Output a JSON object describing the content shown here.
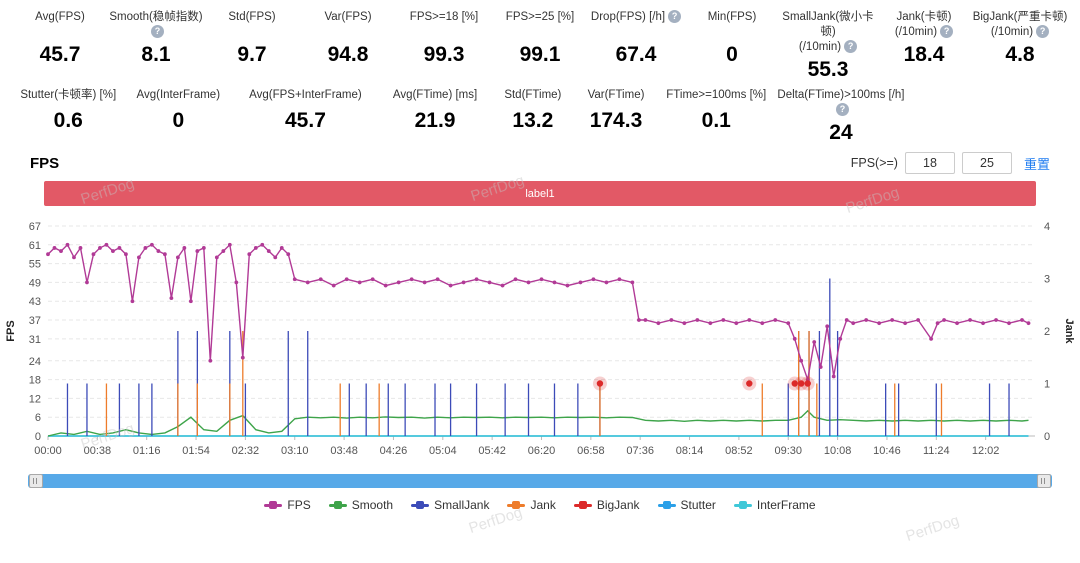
{
  "watermark": "PerfDog",
  "stats_row1": [
    {
      "line1": "Avg(FPS)",
      "value": "45.7",
      "help": false
    },
    {
      "line1": "Smooth(稳帧指数)",
      "value": "8.1",
      "help": true
    },
    {
      "line1": "Std(FPS)",
      "value": "9.7",
      "help": false
    },
    {
      "line1": "Var(FPS)",
      "value": "94.8",
      "help": false
    },
    {
      "line1": "FPS>=18 [%]",
      "value": "99.3",
      "help": false
    },
    {
      "line1": "FPS>=25 [%]",
      "value": "99.1",
      "help": false
    },
    {
      "line1": "Drop(FPS) [/h]",
      "value": "67.4",
      "help": true
    },
    {
      "line1": "Min(FPS)",
      "value": "0",
      "help": false
    },
    {
      "line1": "SmallJank(微小卡顿)",
      "line2": "(/10min)",
      "value": "55.3",
      "help": true
    },
    {
      "line1": "Jank(卡顿)",
      "line2": "(/10min)",
      "value": "18.4",
      "help": true
    },
    {
      "line1": "BigJank(严重卡顿)",
      "line2": "(/10min)",
      "value": "4.8",
      "help": true
    }
  ],
  "stats_row2": [
    {
      "line1": "Stutter(卡顿率) [%]",
      "value": "0.6",
      "help": false
    },
    {
      "line1": "Avg(InterFrame)",
      "value": "0",
      "help": false
    },
    {
      "line1": "Avg(FPS+InterFrame)",
      "value": "45.7",
      "help": false
    },
    {
      "line1": "Avg(FTime) [ms]",
      "value": "21.9",
      "help": false
    },
    {
      "line1": "Std(FTime)",
      "value": "13.2",
      "help": false
    },
    {
      "line1": "Var(FTime)",
      "value": "174.3",
      "help": false
    },
    {
      "line1": "FTime>=100ms [%]",
      "value": "0.1",
      "help": false
    },
    {
      "line1": "Delta(FTime)>100ms [/h]",
      "value": "24",
      "help": true
    }
  ],
  "section": {
    "title": "FPS",
    "filter_label": "FPS(>=)",
    "input1": "18",
    "input2": "25",
    "reset": "重置"
  },
  "banner": {
    "label": "label1",
    "color": "#e25966"
  },
  "chart_data": {
    "type": "line",
    "title": "FPS",
    "y_left": {
      "label": "FPS",
      "max": 67,
      "ticks": [
        0,
        6,
        12,
        18,
        24,
        31,
        37,
        43,
        49,
        55,
        61,
        67
      ]
    },
    "y_right": {
      "label": "Jank",
      "max": 4,
      "ticks": [
        0,
        1,
        2,
        3,
        4
      ]
    },
    "x_ticks": [
      "00:00",
      "00:38",
      "01:16",
      "01:54",
      "02:32",
      "03:10",
      "03:48",
      "04:26",
      "05:04",
      "05:42",
      "06:20",
      "06:58",
      "07:36",
      "08:14",
      "08:52",
      "09:30",
      "10:08",
      "10:46",
      "11:24",
      "12:02"
    ],
    "x_tick_interval_seconds": 38,
    "x_max_seconds": 760,
    "grid": true,
    "legend_position": "bottom",
    "series": [
      {
        "name": "FPS",
        "color": "#b13a96",
        "axis": "left",
        "type": "line+dots",
        "z": 5,
        "points": [
          [
            0,
            58
          ],
          [
            5,
            60
          ],
          [
            10,
            59
          ],
          [
            15,
            61
          ],
          [
            20,
            57
          ],
          [
            25,
            60
          ],
          [
            30,
            49
          ],
          [
            35,
            58
          ],
          [
            40,
            60
          ],
          [
            45,
            61
          ],
          [
            50,
            59
          ],
          [
            55,
            60
          ],
          [
            60,
            58
          ],
          [
            65,
            43
          ],
          [
            70,
            57
          ],
          [
            75,
            60
          ],
          [
            80,
            61
          ],
          [
            85,
            59
          ],
          [
            90,
            58
          ],
          [
            95,
            44
          ],
          [
            100,
            57
          ],
          [
            105,
            60
          ],
          [
            110,
            43
          ],
          [
            115,
            59
          ],
          [
            120,
            60
          ],
          [
            125,
            24
          ],
          [
            130,
            57
          ],
          [
            135,
            59
          ],
          [
            140,
            61
          ],
          [
            145,
            49
          ],
          [
            150,
            25
          ],
          [
            155,
            58
          ],
          [
            160,
            60
          ],
          [
            165,
            61
          ],
          [
            170,
            59
          ],
          [
            175,
            57
          ],
          [
            180,
            60
          ],
          [
            185,
            58
          ],
          [
            190,
            50
          ],
          [
            200,
            49
          ],
          [
            210,
            50
          ],
          [
            220,
            48
          ],
          [
            230,
            50
          ],
          [
            240,
            49
          ],
          [
            250,
            50
          ],
          [
            260,
            48
          ],
          [
            270,
            49
          ],
          [
            280,
            50
          ],
          [
            290,
            49
          ],
          [
            300,
            50
          ],
          [
            310,
            48
          ],
          [
            320,
            49
          ],
          [
            330,
            50
          ],
          [
            340,
            49
          ],
          [
            350,
            48
          ],
          [
            360,
            50
          ],
          [
            370,
            49
          ],
          [
            380,
            50
          ],
          [
            390,
            49
          ],
          [
            400,
            48
          ],
          [
            410,
            49
          ],
          [
            420,
            50
          ],
          [
            430,
            49
          ],
          [
            440,
            50
          ],
          [
            450,
            49
          ],
          [
            455,
            37
          ],
          [
            460,
            37
          ],
          [
            470,
            36
          ],
          [
            480,
            37
          ],
          [
            490,
            36
          ],
          [
            500,
            37
          ],
          [
            510,
            36
          ],
          [
            520,
            37
          ],
          [
            530,
            36
          ],
          [
            540,
            37
          ],
          [
            550,
            36
          ],
          [
            560,
            37
          ],
          [
            570,
            36
          ],
          [
            575,
            31
          ],
          [
            580,
            24
          ],
          [
            585,
            18
          ],
          [
            590,
            30
          ],
          [
            595,
            22
          ],
          [
            600,
            35
          ],
          [
            605,
            19
          ],
          [
            610,
            31
          ],
          [
            615,
            37
          ],
          [
            620,
            36
          ],
          [
            630,
            37
          ],
          [
            640,
            36
          ],
          [
            650,
            37
          ],
          [
            660,
            36
          ],
          [
            670,
            37
          ],
          [
            680,
            31
          ],
          [
            685,
            36
          ],
          [
            690,
            37
          ],
          [
            700,
            36
          ],
          [
            710,
            37
          ],
          [
            720,
            36
          ],
          [
            730,
            37
          ],
          [
            740,
            36
          ],
          [
            750,
            37
          ],
          [
            755,
            36
          ]
        ]
      },
      {
        "name": "Smooth",
        "color": "#3ea44a",
        "axis": "left",
        "type": "line",
        "z": 2,
        "points": [
          [
            0,
            0
          ],
          [
            10,
            1
          ],
          [
            20,
            0.5
          ],
          [
            30,
            1.5
          ],
          [
            40,
            0.5
          ],
          [
            50,
            1
          ],
          [
            60,
            2
          ],
          [
            70,
            1
          ],
          [
            80,
            0.5
          ],
          [
            90,
            1
          ],
          [
            100,
            3
          ],
          [
            110,
            6
          ],
          [
            115,
            4
          ],
          [
            120,
            2
          ],
          [
            130,
            1.5
          ],
          [
            140,
            5
          ],
          [
            150,
            6.5
          ],
          [
            160,
            2
          ],
          [
            170,
            1
          ],
          [
            180,
            1.5
          ],
          [
            190,
            5.5
          ],
          [
            200,
            6
          ],
          [
            210,
            5.8
          ],
          [
            220,
            6
          ],
          [
            230,
            5.7
          ],
          [
            240,
            6
          ],
          [
            250,
            5.8
          ],
          [
            260,
            6.1
          ],
          [
            270,
            5.9
          ],
          [
            280,
            6
          ],
          [
            290,
            5.7
          ],
          [
            300,
            6
          ],
          [
            310,
            5.8
          ],
          [
            320,
            6
          ],
          [
            330,
            5.9
          ],
          [
            340,
            6
          ],
          [
            350,
            5.8
          ],
          [
            360,
            6
          ],
          [
            370,
            5.9
          ],
          [
            380,
            6
          ],
          [
            390,
            5.8
          ],
          [
            400,
            6
          ],
          [
            410,
            5.9
          ],
          [
            420,
            6
          ],
          [
            430,
            5.8
          ],
          [
            440,
            6
          ],
          [
            450,
            5.9
          ],
          [
            460,
            5
          ],
          [
            470,
            4.8
          ],
          [
            480,
            5
          ],
          [
            490,
            4.7
          ],
          [
            500,
            5
          ],
          [
            510,
            4.8
          ],
          [
            520,
            5
          ],
          [
            530,
            4.8
          ],
          [
            540,
            5
          ],
          [
            550,
            4.8
          ],
          [
            560,
            5
          ],
          [
            570,
            5
          ],
          [
            580,
            6
          ],
          [
            585,
            8
          ],
          [
            590,
            6
          ],
          [
            600,
            5
          ],
          [
            610,
            5.2
          ],
          [
            620,
            5
          ],
          [
            630,
            4.8
          ],
          [
            640,
            5
          ],
          [
            650,
            4.8
          ],
          [
            660,
            5
          ],
          [
            670,
            4.8
          ],
          [
            680,
            5
          ],
          [
            690,
            4.8
          ],
          [
            700,
            5
          ],
          [
            710,
            4.8
          ],
          [
            720,
            5
          ],
          [
            730,
            4.8
          ],
          [
            740,
            5
          ],
          [
            750,
            4.8
          ],
          [
            755,
            5
          ]
        ]
      },
      {
        "name": "SmallJank",
        "color": "#3c4bb8",
        "axis": "right",
        "type": "spike",
        "z": 3,
        "points": [
          [
            15,
            1
          ],
          [
            30,
            1
          ],
          [
            55,
            1
          ],
          [
            70,
            1
          ],
          [
            80,
            1
          ],
          [
            100,
            2
          ],
          [
            115,
            2
          ],
          [
            140,
            2
          ],
          [
            152,
            1
          ],
          [
            185,
            2
          ],
          [
            200,
            2
          ],
          [
            232,
            1
          ],
          [
            245,
            1
          ],
          [
            262,
            1
          ],
          [
            275,
            1
          ],
          [
            298,
            1
          ],
          [
            310,
            1
          ],
          [
            330,
            1
          ],
          [
            352,
            1
          ],
          [
            370,
            1
          ],
          [
            390,
            1
          ],
          [
            408,
            1
          ],
          [
            425,
            1
          ],
          [
            570,
            1
          ],
          [
            578,
            2
          ],
          [
            586,
            2
          ],
          [
            594,
            2
          ],
          [
            602,
            3
          ],
          [
            608,
            2
          ],
          [
            645,
            1
          ],
          [
            655,
            1
          ],
          [
            684,
            1
          ],
          [
            725,
            1
          ],
          [
            740,
            1
          ]
        ]
      },
      {
        "name": "Jank",
        "color": "#ee7c2b",
        "axis": "right",
        "type": "spike",
        "z": 4,
        "points": [
          [
            45,
            1
          ],
          [
            100,
            1
          ],
          [
            115,
            1
          ],
          [
            140,
            1
          ],
          [
            150,
            2
          ],
          [
            225,
            1
          ],
          [
            255,
            1
          ],
          [
            425,
            1
          ],
          [
            550,
            1
          ],
          [
            578,
            2
          ],
          [
            586,
            2
          ],
          [
            592,
            1
          ],
          [
            652,
            1
          ],
          [
            688,
            1
          ]
        ]
      },
      {
        "name": "BigJank",
        "color": "#dc2a2a",
        "axis": "right",
        "type": "halo-dot",
        "z": 6,
        "points": [
          [
            425,
            1
          ],
          [
            540,
            1
          ],
          [
            575,
            1
          ],
          [
            580,
            1
          ],
          [
            585,
            1
          ]
        ]
      },
      {
        "name": "Stutter",
        "color": "#2ba0e8",
        "axis": "right",
        "type": "line",
        "z": 1,
        "points": [
          [
            0,
            0
          ],
          [
            755,
            0
          ]
        ]
      },
      {
        "name": "InterFrame",
        "color": "#40c8d8",
        "axis": "right",
        "type": "line",
        "z": 1,
        "points": [
          [
            0,
            0
          ],
          [
            755,
            0
          ]
        ]
      }
    ]
  }
}
